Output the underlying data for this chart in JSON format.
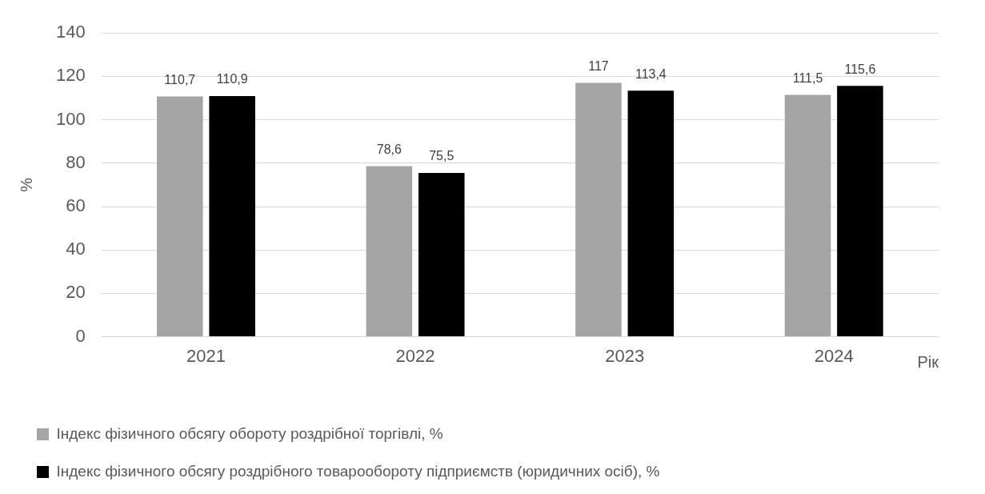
{
  "chart_data": {
    "type": "bar",
    "ylabel": "%",
    "xlabel": "Рік",
    "categories": [
      "2021",
      "2022",
      "2023",
      "2024"
    ],
    "series": [
      {
        "name": "Індекс фізичного обсягу обороту роздрібної торгівлі, %",
        "color": "#a5a5a5",
        "values": [
          110.7,
          78.6,
          117,
          111.5
        ],
        "value_labels": [
          "110,7",
          "78,6",
          "117",
          "111,5"
        ]
      },
      {
        "name": "Індекс фізичного обсягу роздрібного товарообороту підприємств (юридичних осіб), %",
        "color": "#000000",
        "values": [
          110.9,
          75.5,
          113.4,
          115.6
        ],
        "value_labels": [
          "110,9",
          "75,5",
          "113,4",
          "115,6"
        ]
      }
    ],
    "ylim": [
      0,
      140
    ],
    "yticks": [
      0,
      20,
      40,
      60,
      80,
      100,
      120,
      140
    ],
    "grid": "y",
    "legend": "bottom"
  }
}
